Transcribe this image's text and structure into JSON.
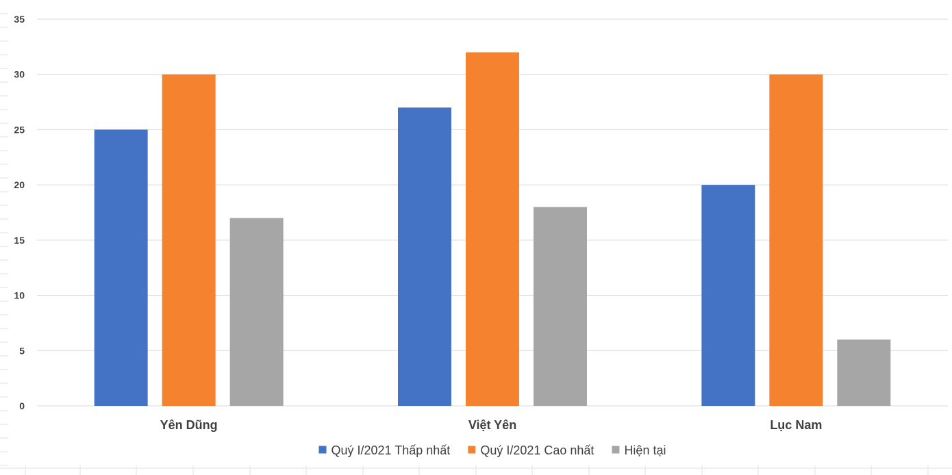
{
  "chart_data": {
    "type": "bar",
    "categories": [
      "Yên Dũng",
      "Việt Yên",
      "Lục Nam"
    ],
    "series": [
      {
        "name": "Quý I/2021 Thấp nhất",
        "values": [
          25,
          27,
          20
        ],
        "color": "#4472C4"
      },
      {
        "name": "Quý I/2021 Cao nhất",
        "values": [
          30,
          32,
          30
        ],
        "color": "#F5822E"
      },
      {
        "name": "Hiện tại",
        "values": [
          17,
          18,
          6
        ],
        "color": "#A6A6A6"
      }
    ],
    "y_ticks": [
      "0",
      "5",
      "10",
      "15",
      "20",
      "25",
      "30",
      "35"
    ],
    "ylim": [
      0,
      35
    ],
    "xlabel": "",
    "ylabel": "",
    "title": "",
    "grid": true,
    "legend_position": "bottom"
  },
  "colors": {
    "gridline": "#D9D9D9",
    "sheet_gridline": "#E6DDF0",
    "axis_text": "#404040"
  }
}
